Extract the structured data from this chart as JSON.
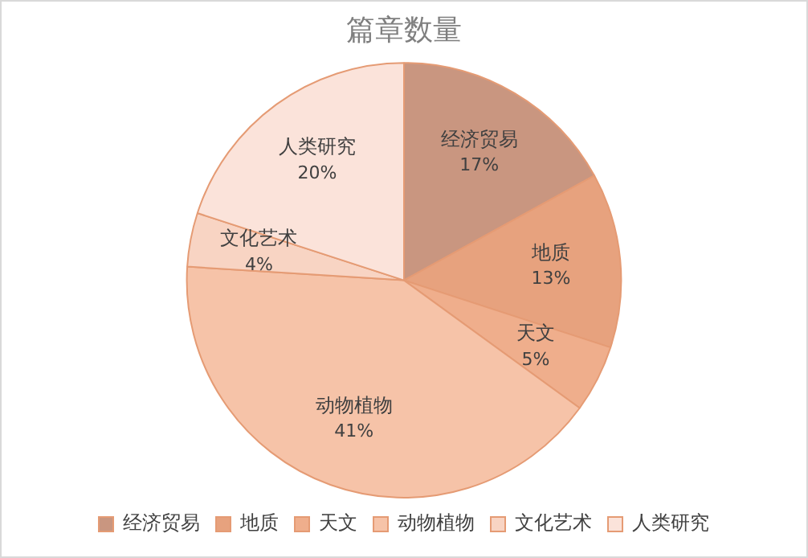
{
  "chart_data": {
    "type": "pie",
    "title": "篇章数量",
    "categories": [
      "经济贸易",
      "地质",
      "天文",
      "动物植物",
      "文化艺术",
      "人类研究"
    ],
    "values": [
      17,
      13,
      5,
      41,
      4,
      20
    ],
    "value_labels": [
      "17%",
      "13%",
      "5%",
      "41%",
      "4%",
      "20%"
    ],
    "colors": [
      "#c99680",
      "#e7a27e",
      "#efae8c",
      "#f6c3a8",
      "#f8d4c3",
      "#fbe3da"
    ],
    "legend": "bottom"
  }
}
